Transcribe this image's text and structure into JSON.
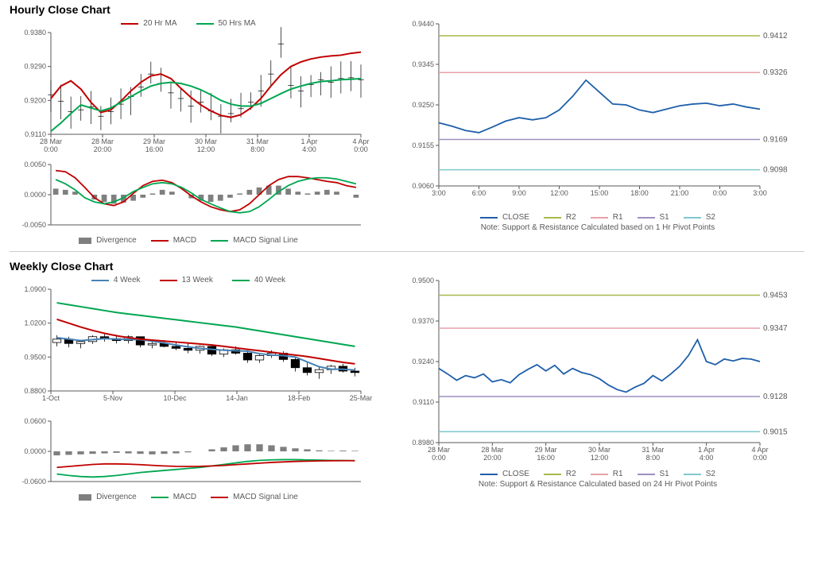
{
  "colors": {
    "ma_red": "#c00000",
    "ma_green": "#00a651",
    "price_black": "#000000",
    "divergence_gray": "#7f7f7f",
    "blue4w": "#4682b4",
    "close_blue": "#1f5faa",
    "r2_olive": "#a8b84a",
    "r1_pink": "#e8a0a8",
    "s1_purple": "#9e8fc0",
    "s2_teal": "#7fc8cf",
    "axis_text": "#595959",
    "grid": "#d0d0d0"
  },
  "hourly": {
    "title": "Hourly Close Chart",
    "legend_top": [
      "20 Hr MA",
      "50 Hrs MA"
    ],
    "price": {
      "type": "line+bars",
      "ylim": [
        0.911,
        0.938
      ],
      "yticks": [
        0.911,
        0.92,
        0.929,
        0.938
      ],
      "xlabels": [
        "28 Mar\n0:00",
        "28 Mar\n20:00",
        "29 Mar\n16:00",
        "30 Mar\n12:00",
        "31 Mar\n8:00",
        "1 Apr\n4:00",
        "4 Apr\n0:00"
      ],
      "close": [
        0.9215,
        0.9198,
        0.917,
        0.9175,
        0.9183,
        0.9158,
        0.917,
        0.919,
        0.921,
        0.9235,
        0.927,
        0.9245,
        0.922,
        0.9205,
        0.9185,
        0.9195,
        0.9172,
        0.9158,
        0.9165,
        0.9178,
        0.9195,
        0.9225,
        0.927,
        0.935,
        0.924,
        0.9225,
        0.9242,
        0.9255,
        0.9248,
        0.9258,
        0.926,
        0.9255
      ],
      "ma20": [
        0.9205,
        0.9238,
        0.9252,
        0.923,
        0.9195,
        0.9168,
        0.9175,
        0.9198,
        0.9225,
        0.9248,
        0.9265,
        0.927,
        0.9258,
        0.9232,
        0.9208,
        0.9188,
        0.9172,
        0.916,
        0.9155,
        0.9162,
        0.918,
        0.9205,
        0.9238,
        0.9268,
        0.929,
        0.9302,
        0.931,
        0.9315,
        0.9318,
        0.932,
        0.9325,
        0.9328
      ],
      "ma50": [
        0.9118,
        0.914,
        0.9165,
        0.9188,
        0.918,
        0.9172,
        0.918,
        0.9195,
        0.921,
        0.9225,
        0.9238,
        0.9245,
        0.9248,
        0.9245,
        0.9238,
        0.9228,
        0.9215,
        0.92,
        0.919,
        0.9185,
        0.9185,
        0.9192,
        0.9205,
        0.9218,
        0.923,
        0.9238,
        0.9245,
        0.925,
        0.9252,
        0.9255,
        0.9256,
        0.9258
      ]
    },
    "macd": {
      "type": "macd",
      "ylim": [
        -0.005,
        0.005
      ],
      "yticks": [
        -0.005,
        0.0,
        0.005
      ],
      "legend": [
        "Divergence",
        "MACD",
        "MACD Signal Line"
      ],
      "divergence": [
        0.001,
        0.0008,
        0.0005,
        0.0,
        -0.0008,
        -0.0012,
        -0.0015,
        -0.0013,
        -0.001,
        -0.0005,
        0.0002,
        0.0008,
        0.0005,
        0.0,
        -0.0006,
        -0.001,
        -0.0012,
        -0.001,
        -0.0005,
        0.0002,
        0.0008,
        0.0012,
        0.0015,
        0.0015,
        0.001,
        0.0005,
        0.0002,
        0.0005,
        0.0008,
        0.0005,
        0.0,
        -0.0005
      ],
      "macd": [
        0.004,
        0.0038,
        0.0028,
        0.0012,
        -0.0005,
        -0.0015,
        -0.0018,
        -0.0012,
        0.0002,
        0.0015,
        0.0022,
        0.0024,
        0.002,
        0.001,
        -0.0002,
        -0.0012,
        -0.002,
        -0.0025,
        -0.0028,
        -0.0025,
        -0.0015,
        0.0,
        0.0015,
        0.0025,
        0.003,
        0.003,
        0.0028,
        0.0025,
        0.0022,
        0.002,
        0.0015,
        0.0012
      ],
      "signal": [
        0.0025,
        0.0018,
        0.0008,
        -0.0005,
        -0.0012,
        -0.0015,
        -0.0012,
        -0.0005,
        0.0005,
        0.0012,
        0.0018,
        0.002,
        0.0018,
        0.0012,
        0.0003,
        -0.0008,
        -0.0015,
        -0.0022,
        -0.0028,
        -0.003,
        -0.0028,
        -0.002,
        -0.0008,
        0.0005,
        0.0015,
        0.0022,
        0.0026,
        0.0028,
        0.0028,
        0.0026,
        0.0022,
        0.0018
      ]
    },
    "pivot": {
      "type": "line+levels",
      "ylim": [
        0.906,
        0.944
      ],
      "yticks": [
        0.906,
        0.9155,
        0.925,
        0.9345,
        0.944
      ],
      "xlabels": [
        "3:00",
        "6:00",
        "9:00",
        "12:00",
        "15:00",
        "18:00",
        "21:00",
        "0:00",
        "3:00"
      ],
      "r2": 0.9412,
      "r1": 0.9326,
      "s1": 0.9169,
      "s2": 0.9098,
      "close": [
        0.9208,
        0.92,
        0.919,
        0.9185,
        0.9198,
        0.9212,
        0.922,
        0.9215,
        0.922,
        0.9238,
        0.927,
        0.9308,
        0.928,
        0.9252,
        0.925,
        0.9238,
        0.9232,
        0.924,
        0.9248,
        0.9252,
        0.9254,
        0.9248,
        0.9252,
        0.9245,
        0.924
      ],
      "legend": [
        "CLOSE",
        "R2",
        "R1",
        "S1",
        "S2"
      ],
      "note": "Note: Support & Resistance Calculated based on 1 Hr Pivot Points"
    }
  },
  "weekly": {
    "title": "Weekly Close Chart",
    "legend_top": [
      "4 Week",
      "13 Week",
      "40 Week"
    ],
    "price": {
      "type": "candlestick",
      "ylim": [
        0.88,
        1.09
      ],
      "yticks": [
        0.88,
        0.95,
        1.02,
        1.09
      ],
      "xlabels": [
        "1-Oct",
        "5-Nov",
        "10-Dec",
        "14-Jan",
        "18-Feb",
        "25-Mar"
      ],
      "ohlc": [
        [
          0.98,
          0.995,
          0.972,
          0.987
        ],
        [
          0.987,
          0.992,
          0.97,
          0.978
        ],
        [
          0.978,
          0.985,
          0.968,
          0.982
        ],
        [
          0.982,
          0.995,
          0.977,
          0.992
        ],
        [
          0.992,
          0.997,
          0.982,
          0.988
        ],
        [
          0.988,
          0.996,
          0.978,
          0.984
        ],
        [
          0.984,
          0.995,
          0.978,
          0.992
        ],
        [
          0.992,
          0.992,
          0.97,
          0.975
        ],
        [
          0.975,
          0.986,
          0.968,
          0.978
        ],
        [
          0.978,
          0.985,
          0.97,
          0.972
        ],
        [
          0.972,
          0.982,
          0.964,
          0.968
        ],
        [
          0.968,
          0.978,
          0.958,
          0.964
        ],
        [
          0.964,
          0.974,
          0.957,
          0.972
        ],
        [
          0.972,
          0.974,
          0.952,
          0.956
        ],
        [
          0.956,
          0.968,
          0.95,
          0.965
        ],
        [
          0.965,
          0.972,
          0.955,
          0.958
        ],
        [
          0.958,
          0.964,
          0.938,
          0.944
        ],
        [
          0.944,
          0.956,
          0.938,
          0.953
        ],
        [
          0.953,
          0.964,
          0.948,
          0.958
        ],
        [
          0.958,
          0.962,
          0.94,
          0.945
        ],
        [
          0.945,
          0.95,
          0.92,
          0.928
        ],
        [
          0.928,
          0.938,
          0.912,
          0.918
        ],
        [
          0.918,
          0.93,
          0.905,
          0.924
        ],
        [
          0.924,
          0.934,
          0.915,
          0.931
        ],
        [
          0.931,
          0.936,
          0.918,
          0.921
        ],
        [
          0.921,
          0.928,
          0.91,
          0.918
        ]
      ],
      "ma4": [
        0.99,
        0.987,
        0.984,
        0.986,
        0.988,
        0.987,
        0.9865,
        0.986,
        0.983,
        0.979,
        0.975,
        0.971,
        0.968,
        0.966,
        0.964,
        0.963,
        0.962,
        0.957,
        0.954,
        0.953,
        0.95,
        0.94,
        0.93,
        0.925,
        0.925,
        0.923
      ],
      "ma13": [
        1.028,
        1.02,
        1.012,
        1.005,
        0.999,
        0.994,
        0.99,
        0.987,
        0.985,
        0.983,
        0.981,
        0.979,
        0.977,
        0.975,
        0.972,
        0.969,
        0.966,
        0.963,
        0.96,
        0.957,
        0.954,
        0.951,
        0.947,
        0.943,
        0.939,
        0.936
      ],
      "ma40": [
        1.062,
        1.058,
        1.054,
        1.05,
        1.046,
        1.042,
        1.039,
        1.036,
        1.033,
        1.03,
        1.027,
        1.024,
        1.021,
        1.018,
        1.015,
        1.012,
        1.008,
        1.004,
        1.0,
        0.996,
        0.992,
        0.988,
        0.984,
        0.98,
        0.976,
        0.972
      ]
    },
    "macd": {
      "type": "macd",
      "ylim": [
        -0.06,
        0.06
      ],
      "yticks": [
        -0.06,
        0.0,
        0.06
      ],
      "legend": [
        "Divergence",
        "MACD",
        "MACD Signal Line"
      ],
      "divergence": [
        -0.008,
        -0.007,
        -0.006,
        -0.005,
        -0.004,
        -0.003,
        -0.004,
        -0.005,
        -0.006,
        -0.005,
        -0.004,
        -0.002,
        0.0,
        0.004,
        0.008,
        0.012,
        0.014,
        0.014,
        0.012,
        0.009,
        0.006,
        0.004,
        0.002,
        0.001,
        0.0015,
        0.001
      ],
      "macd": [
        -0.045,
        -0.048,
        -0.05,
        -0.051,
        -0.05,
        -0.048,
        -0.045,
        -0.042,
        -0.04,
        -0.038,
        -0.036,
        -0.034,
        -0.032,
        -0.029,
        -0.026,
        -0.023,
        -0.02,
        -0.018,
        -0.017,
        -0.0165,
        -0.0165,
        -0.017,
        -0.0175,
        -0.018,
        -0.0182,
        -0.0185
      ],
      "signal": [
        -0.032,
        -0.03,
        -0.028,
        -0.026,
        -0.025,
        -0.025,
        -0.0255,
        -0.0265,
        -0.0278,
        -0.029,
        -0.0298,
        -0.03,
        -0.0298,
        -0.029,
        -0.028,
        -0.0265,
        -0.025,
        -0.0235,
        -0.022,
        -0.021,
        -0.02,
        -0.0195,
        -0.019,
        -0.0188,
        -0.0186,
        -0.0185
      ]
    },
    "pivot": {
      "type": "line+levels",
      "ylim": [
        0.898,
        0.95
      ],
      "yticks": [
        0.898,
        0.911,
        0.924,
        0.937,
        0.95
      ],
      "xlabels": [
        "28 Mar\n0:00",
        "28 Mar\n20:00",
        "29 Mar\n16:00",
        "30 Mar\n12:00",
        "31 Mar\n8:00",
        "1 Apr\n4:00",
        "4 Apr\n0:00"
      ],
      "r2": 0.9453,
      "r1": 0.9347,
      "s1": 0.9128,
      "s2": 0.9015,
      "close": [
        0.9218,
        0.92,
        0.918,
        0.9195,
        0.9188,
        0.92,
        0.9175,
        0.9182,
        0.9172,
        0.9198,
        0.9215,
        0.923,
        0.921,
        0.9228,
        0.92,
        0.9218,
        0.9205,
        0.9198,
        0.9185,
        0.9165,
        0.915,
        0.9142,
        0.9158,
        0.917,
        0.9195,
        0.9178,
        0.92,
        0.9225,
        0.926,
        0.931,
        0.924,
        0.923,
        0.9248,
        0.9242,
        0.925,
        0.9248,
        0.924
      ],
      "legend": [
        "CLOSE",
        "R2",
        "R1",
        "S1",
        "S2"
      ],
      "note": "Note: Support & Resistance Calculated based on 24 Hr Pivot Points"
    }
  }
}
